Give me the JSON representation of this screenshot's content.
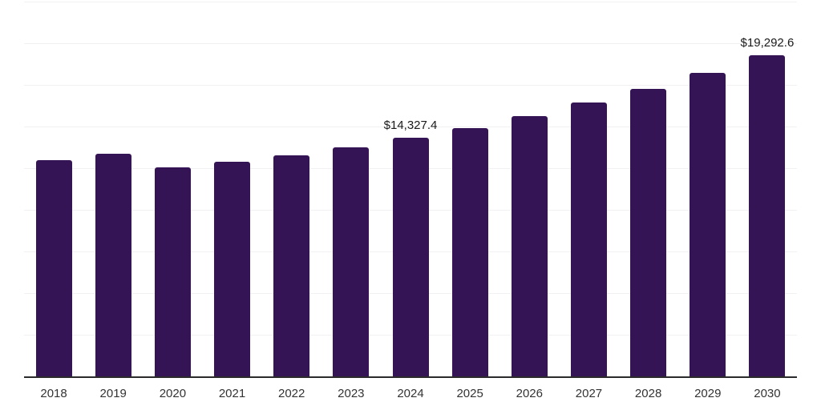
{
  "chart": {
    "bar_color": "#341454",
    "grid_color": "#f1f1f3",
    "axis_color": "#2b2b2b",
    "data_label_color": "#1a1a1a",
    "tick_label_color": "#333333",
    "background_color": "#ffffff"
  },
  "chart_data": {
    "type": "bar",
    "title": "",
    "xlabel": "",
    "ylabel": "",
    "categories": [
      "2018",
      "2019",
      "2020",
      "2021",
      "2022",
      "2023",
      "2024",
      "2025",
      "2026",
      "2027",
      "2028",
      "2029",
      "2030"
    ],
    "values": [
      12980,
      13360,
      12530,
      12900,
      13280,
      13760,
      14327.4,
      14920,
      15640,
      16430,
      17270,
      18220,
      19292.6
    ],
    "data_labels": [
      {
        "category": "2024",
        "text": "$14,327.4"
      },
      {
        "category": "2030",
        "text": "$19,292.6"
      }
    ],
    "ylim": [
      0,
      22500
    ],
    "gridline_interval": 2500,
    "grid": true,
    "legend": false,
    "y_axis_labels_visible": false
  }
}
